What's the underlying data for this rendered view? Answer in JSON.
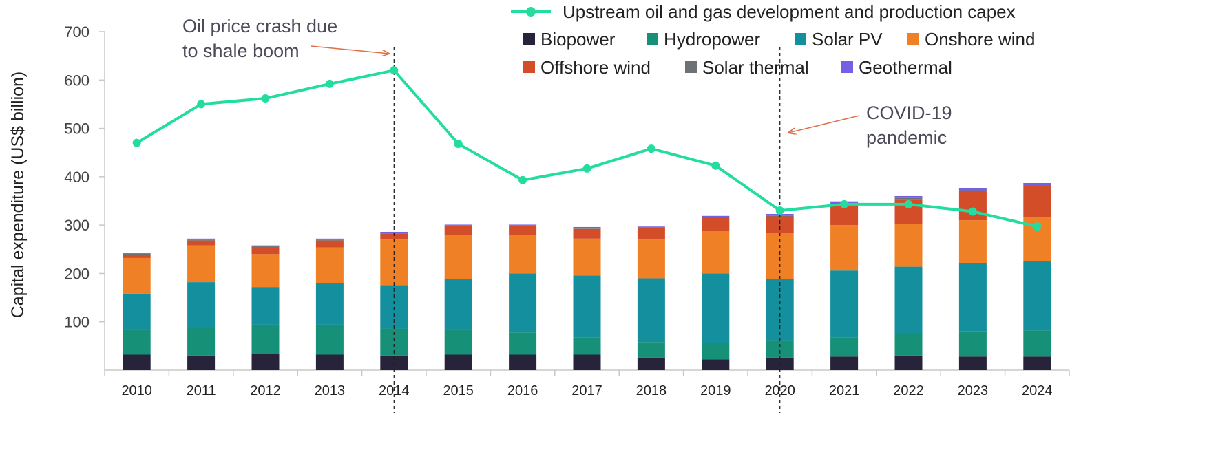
{
  "chart_data": {
    "type": "bar",
    "stacked": true,
    "title": "",
    "xlabel": "",
    "ylabel": "Capital expenditure (US$ billion)",
    "ylim": [
      0,
      700
    ],
    "yticks": [
      100,
      200,
      300,
      400,
      500,
      600,
      700
    ],
    "categories": [
      "2010",
      "2011",
      "2012",
      "2013",
      "2014",
      "2015",
      "2016",
      "2017",
      "2018",
      "2019",
      "2020",
      "2021",
      "2022",
      "2023",
      "2024"
    ],
    "series": [
      {
        "name": "Biopower",
        "color": "#26233a",
        "values": [
          32,
          30,
          34,
          32,
          30,
          32,
          32,
          32,
          26,
          22,
          26,
          28,
          30,
          28,
          28
        ]
      },
      {
        "name": "Hydropower",
        "color": "#169076",
        "values": [
          52,
          58,
          60,
          62,
          56,
          52,
          46,
          36,
          32,
          34,
          36,
          40,
          44,
          52,
          54
        ]
      },
      {
        "name": "Solar PV",
        "color": "#148f9e",
        "values": [
          74,
          94,
          78,
          86,
          90,
          104,
          122,
          128,
          132,
          144,
          126,
          138,
          140,
          142,
          144
        ]
      },
      {
        "name": "Onshore wind",
        "color": "#f08026",
        "values": [
          74,
          76,
          68,
          74,
          94,
          92,
          80,
          76,
          80,
          88,
          96,
          94,
          88,
          88,
          90
        ]
      },
      {
        "name": "Offshore wind",
        "color": "#d34d28",
        "values": [
          6,
          10,
          12,
          14,
          12,
          18,
          18,
          20,
          24,
          28,
          34,
          42,
          52,
          60,
          64
        ]
      },
      {
        "name": "Solar thermal",
        "color": "#6e7275",
        "values": [
          3,
          2,
          4,
          2,
          2,
          1,
          1,
          1,
          1,
          1,
          1,
          2,
          2,
          2,
          2
        ]
      },
      {
        "name": "Geothermal",
        "color": "#7460e2",
        "values": [
          2,
          2,
          2,
          2,
          2,
          2,
          2,
          3,
          2,
          2,
          4,
          5,
          4,
          5,
          5
        ]
      }
    ],
    "line_series": {
      "name": "Upstream oil and gas development  and production capex",
      "color": "#23dca0",
      "values": [
        470,
        550,
        562,
        592,
        620,
        468,
        393,
        417,
        458,
        423,
        330,
        343,
        343,
        328,
        297
      ]
    },
    "annotations": [
      {
        "category": "2014",
        "text_lines": [
          "Oil price crash due",
          "to shale boom"
        ]
      },
      {
        "category": "2020",
        "text_lines": [
          "COVID-19",
          "pandemic"
        ]
      }
    ],
    "legend": {
      "placement": "top-right",
      "rows": [
        [
          "Upstream oil and gas development  and production capex"
        ],
        [
          "Biopower",
          "Hydropower",
          "Solar PV",
          "Onshore wind"
        ],
        [
          "Offshore wind",
          "Solar thermal",
          "Geothermal"
        ]
      ]
    }
  }
}
